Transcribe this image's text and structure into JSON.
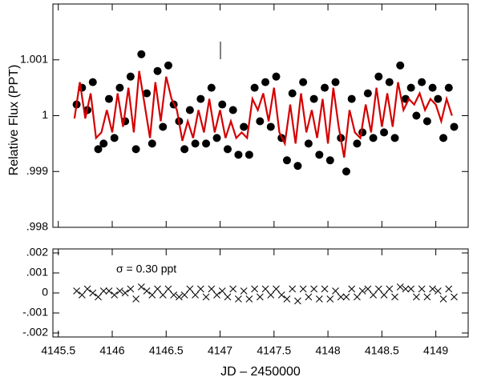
{
  "chart_data": [
    {
      "type": "scatter",
      "ylabel": "Relative Flux (PPT)",
      "xlim": [
        4145.45,
        4149.3
      ],
      "ylim": [
        0.998,
        1.002
      ],
      "xticks": [
        4145.5,
        4146,
        4146.5,
        4147,
        4147.5,
        4148,
        4148.5,
        4149
      ],
      "yticks": [
        {
          "value": 0.998,
          "label": ".998"
        },
        {
          "value": 0.999,
          "label": ".999"
        },
        1,
        {
          "value": 1.001,
          "label": "1.001"
        }
      ],
      "series": [
        {
          "marker": "dot",
          "color": "#000000",
          "x": [
            4145.67,
            4145.72,
            4145.77,
            4145.82,
            4145.87,
            4145.92,
            4145.97,
            4146.02,
            4146.07,
            4146.12,
            4146.17,
            4146.22,
            4146.27,
            4146.32,
            4146.37,
            4146.42,
            4146.47,
            4146.52,
            4146.57,
            4146.62,
            4146.67,
            4146.72,
            4146.77,
            4146.82,
            4146.87,
            4146.92,
            4146.97,
            4147.02,
            4147.07,
            4147.12,
            4147.17,
            4147.22,
            4147.27,
            4147.32,
            4147.37,
            4147.42,
            4147.47,
            4147.52,
            4147.57,
            4147.62,
            4147.67,
            4147.72,
            4147.77,
            4147.82,
            4147.87,
            4147.92,
            4147.97,
            4148.02,
            4148.07,
            4148.12,
            4148.17,
            4148.22,
            4148.27,
            4148.32,
            4148.37,
            4148.42,
            4148.47,
            4148.52,
            4148.57,
            4148.62,
            4148.67,
            4148.72,
            4148.77,
            4148.82,
            4148.87,
            4148.92,
            4148.97,
            4149.02,
            4149.07,
            4149.12,
            4149.17
          ],
          "values": [
            1.0002,
            1.0005,
            1.0001,
            1.0006,
            0.9994,
            0.9995,
            1.0003,
            0.9996,
            1.0005,
            0.9999,
            1.0007,
            0.9994,
            1.0011,
            1.0004,
            0.9995,
            1.0008,
            0.9998,
            1.0009,
            1.0002,
            0.9999,
            0.9994,
            1.0001,
            0.9995,
            1.0003,
            0.9995,
            1.0005,
            0.9996,
            1.0002,
            0.9994,
            1.0001,
            0.9993,
            0.9998,
            0.9993,
            1.0005,
            0.9999,
            1.0006,
            0.9998,
            1.0007,
            0.9996,
            0.9992,
            1.0004,
            0.9991,
            1.0006,
            0.9995,
            1.0003,
            0.9993,
            1.0005,
            0.9992,
            1.0006,
            0.9996,
            0.999,
            1.0003,
            0.9995,
            0.9997,
            1.0004,
            0.9996,
            1.0007,
            0.9997,
            1.0006,
            0.9996,
            1.0009,
            1.0003,
            1.0005,
            1,
            1.0006,
            0.9999,
            1.0005,
            1.0003,
            0.9996,
            1.0005,
            0.9998
          ]
        },
        {
          "marker": "line",
          "color": "#d40000",
          "x": [
            4145.65,
            4145.7,
            4145.75,
            4145.8,
            4145.85,
            4145.9,
            4145.95,
            4146,
            4146.05,
            4146.1,
            4146.15,
            4146.2,
            4146.25,
            4146.3,
            4146.35,
            4146.4,
            4146.45,
            4146.5,
            4146.55,
            4146.6,
            4146.65,
            4146.7,
            4146.75,
            4146.8,
            4146.85,
            4146.9,
            4146.95,
            4147,
            4147.05,
            4147.1,
            4147.15,
            4147.2,
            4147.25,
            4147.3,
            4147.35,
            4147.4,
            4147.45,
            4147.5,
            4147.55,
            4147.6,
            4147.65,
            4147.7,
            4147.75,
            4147.8,
            4147.85,
            4147.9,
            4147.95,
            4148,
            4148.05,
            4148.1,
            4148.15,
            4148.2,
            4148.25,
            4148.3,
            4148.35,
            4148.4,
            4148.45,
            4148.5,
            4148.55,
            4148.6,
            4148.65,
            4148.7,
            4148.75,
            4148.8,
            4148.85,
            4148.9,
            4148.95,
            4149,
            4149.05,
            4149.1,
            4149.15
          ],
          "values": [
            0.99995,
            1.0006,
            0.99995,
            1.0004,
            0.9996,
            0.9997,
            1.0001,
            0.9997,
            1.0004,
            0.9998,
            1.0005,
            0.9997,
            1.0008,
            1.0002,
            0.9996,
            1.0006,
            0.9999,
            1.0007,
            1.0003,
            1.0001,
            0.99955,
            0.9999,
            0.9996,
            1.0001,
            0.9997,
            1.0003,
            0.9997,
            1.0001,
            0.9996,
            0.9999,
            0.9996,
            0.9997,
            0.9996,
            1.0003,
            1.0001,
            1.0004,
            0.9999,
            1.0005,
            0.9997,
            0.9995,
            1.0002,
            0.9995,
            1.0004,
            0.9997,
            1.0001,
            0.9996,
            1.0003,
            0.9995,
            1.0005,
            0.9998,
            0.99925,
            1.0001,
            0.9997,
            0.9996,
            1.0002,
            0.9997,
            1.0005,
            0.9998,
            1.0004,
            0.9998,
            1.0006,
            1.0001,
            1.0003,
            1.0002,
            1.0004,
            1.0001,
            1.0003,
            1.0002,
            0.9999,
            1.0003,
            1
          ]
        }
      ]
    },
    {
      "type": "scatter",
      "xlabel": "JD – 2450000",
      "annotation": "σ = 0.30 ppt",
      "xlim": [
        4145.45,
        4149.3
      ],
      "ylim": [
        -0.0022,
        0.0022
      ],
      "xticks": [
        4145.5,
        4146,
        4146.5,
        4147,
        4147.5,
        4148,
        4148.5,
        4149
      ],
      "yticks": [
        {
          "value": -0.002,
          "label": "-.002"
        },
        {
          "value": -0.001,
          "label": "-.001"
        },
        0,
        {
          "value": 0.001,
          "label": ".001"
        },
        {
          "value": 0.002,
          "label": ".002"
        }
      ],
      "series": [
        {
          "marker": "x",
          "color": "#000000",
          "x": [
            4145.67,
            4145.72,
            4145.77,
            4145.82,
            4145.87,
            4145.92,
            4145.97,
            4146.02,
            4146.07,
            4146.12,
            4146.17,
            4146.22,
            4146.27,
            4146.32,
            4146.37,
            4146.42,
            4146.47,
            4146.52,
            4146.57,
            4146.62,
            4146.67,
            4146.72,
            4146.77,
            4146.82,
            4146.87,
            4146.92,
            4146.97,
            4147.02,
            4147.07,
            4147.12,
            4147.17,
            4147.22,
            4147.27,
            4147.32,
            4147.37,
            4147.42,
            4147.47,
            4147.52,
            4147.57,
            4147.62,
            4147.67,
            4147.72,
            4147.77,
            4147.82,
            4147.87,
            4147.92,
            4147.97,
            4148.02,
            4148.07,
            4148.12,
            4148.17,
            4148.22,
            4148.27,
            4148.32,
            4148.37,
            4148.42,
            4148.47,
            4148.52,
            4148.57,
            4148.62,
            4148.67,
            4148.72,
            4148.77,
            4148.82,
            4148.87,
            4148.92,
            4148.97,
            4149.02,
            4149.07,
            4149.12,
            4149.17
          ],
          "values": [
            0.0001,
            -0.0001,
            0.0002,
            0,
            -0.0002,
            0.0001,
            0.0001,
            -0.0001,
            0.0001,
            0,
            0.0002,
            -0.0003,
            0.0003,
            0.0001,
            -0.0001,
            0.0002,
            -0.0001,
            0.0002,
            -0.0001,
            -0.0002,
            -0.0001,
            0.0002,
            -0.0001,
            0.0002,
            -0.0002,
            0.0002,
            -0.0001,
            0.0001,
            -0.0002,
            0.0002,
            -0.0003,
            0.0001,
            -0.0003,
            0.0002,
            -0.0002,
            0.0002,
            -0.0001,
            0.0002,
            -0.0001,
            -0.0003,
            0.0002,
            -0.0004,
            0.0002,
            -0.0002,
            0.0002,
            -0.0003,
            0.0002,
            -0.0003,
            0.0001,
            -0.0002,
            -0.0002,
            0.0002,
            -0.0002,
            0.0001,
            0.0002,
            -0.0001,
            0.0002,
            -0.0001,
            0.0002,
            -0.0002,
            0.0003,
            0.0002,
            0.0002,
            -0.0002,
            0.0002,
            -0.0002,
            0.0002,
            0.0001,
            -0.0003,
            0.0002,
            -0.0002
          ]
        }
      ]
    }
  ]
}
